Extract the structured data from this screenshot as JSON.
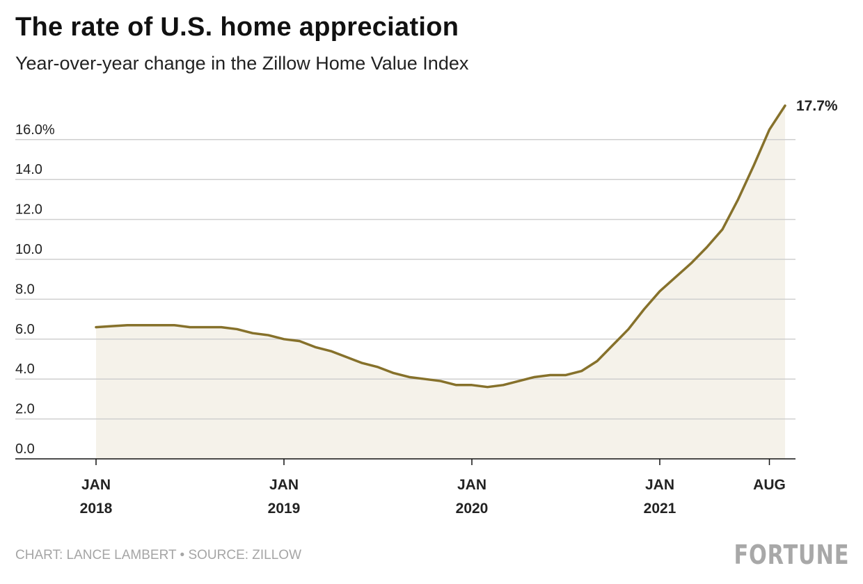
{
  "header": {
    "title": "The rate of U.S. home appreciation",
    "subtitle": "Year-over-year change in the Zillow Home Value Index"
  },
  "footer": {
    "credit": "CHART: LANCE LAMBERT • SOURCE: ZILLOW",
    "logo": "FORTUNE"
  },
  "colors": {
    "line": "#86712b",
    "fill": "#f5f2ea",
    "grid": "#cfcfcf",
    "axis": "#111111"
  },
  "chart_data": {
    "type": "area",
    "title": "The rate of U.S. home appreciation",
    "subtitle": "Year-over-year change in the Zillow Home Value Index",
    "x_start": "2018-01",
    "x_frequency": "monthly",
    "values": [
      6.6,
      6.65,
      6.7,
      6.7,
      6.7,
      6.7,
      6.6,
      6.6,
      6.6,
      6.5,
      6.3,
      6.2,
      6.0,
      5.9,
      5.6,
      5.4,
      5.1,
      4.8,
      4.6,
      4.3,
      4.1,
      4.0,
      3.9,
      3.7,
      3.7,
      3.6,
      3.7,
      3.9,
      4.1,
      4.2,
      4.2,
      4.4,
      4.9,
      5.7,
      6.5,
      7.5,
      8.4,
      9.1,
      9.8,
      10.6,
      11.5,
      13.0,
      14.7,
      16.5,
      17.7
    ],
    "end_label": "17.7%",
    "ylim": [
      0,
      17.7
    ],
    "y_ticks": [
      0,
      2,
      4,
      6,
      8,
      10,
      12,
      14,
      16
    ],
    "y_tick_labels": [
      "0.0",
      "2.0",
      "4.0",
      "6.0",
      "8.0",
      "10.0",
      "12.0",
      "14.0",
      "16.0%"
    ],
    "x_ticks": [
      {
        "month": "2018-01",
        "line1": "JAN",
        "line2": "2018"
      },
      {
        "month": "2019-01",
        "line1": "JAN",
        "line2": "2019"
      },
      {
        "month": "2020-01",
        "line1": "JAN",
        "line2": "2020"
      },
      {
        "month": "2021-01",
        "line1": "JAN",
        "line2": "2021"
      },
      {
        "month": "2021-08",
        "line1": "AUG",
        "line2": ""
      }
    ],
    "grid": true,
    "legend": "none"
  }
}
